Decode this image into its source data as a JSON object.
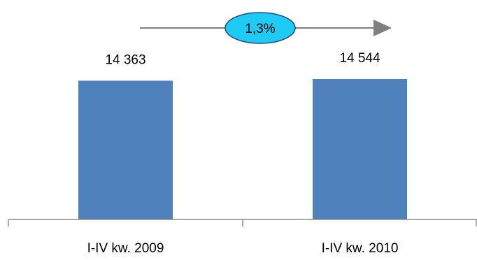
{
  "chart_data": {
    "type": "bar",
    "categories": [
      "I-IV kw. 2009",
      "I-IV kw. 2010"
    ],
    "values": [
      14363,
      14544
    ],
    "data_labels": [
      "14 363",
      "14 544"
    ],
    "ylim": [
      0,
      14544
    ],
    "grid": false,
    "legend": "none",
    "annotation": {
      "label": "1,3%",
      "style": "arrow-with-ellipse"
    },
    "colors": {
      "bar": "#4f81bd",
      "axis": "#8c8c8c",
      "arrow": "#7f7f7f",
      "badge_fill": "#1ecbf5",
      "badge_stroke": "#1f497d"
    }
  }
}
